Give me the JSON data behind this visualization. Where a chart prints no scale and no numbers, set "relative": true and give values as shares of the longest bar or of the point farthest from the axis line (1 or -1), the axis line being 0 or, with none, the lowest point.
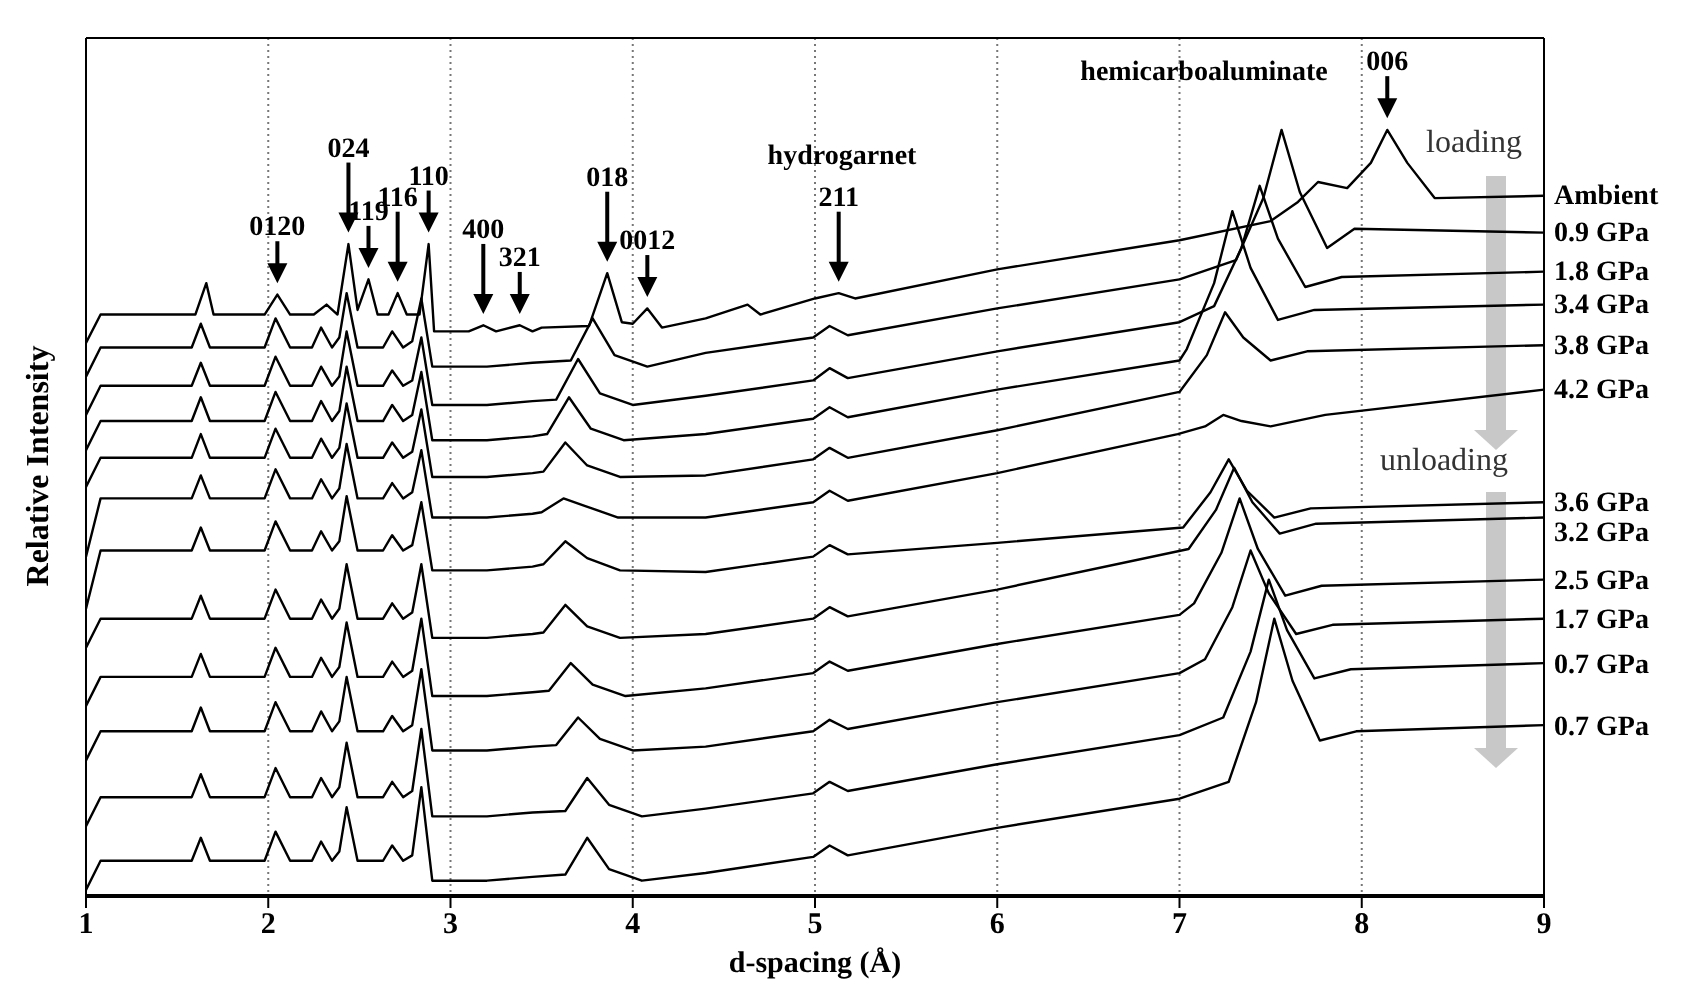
{
  "chart_data": {
    "type": "line",
    "relative": true,
    "xlabel": "d-spacing (Å)",
    "ylabel": "Relative Intensity",
    "xlim": [
      1,
      9
    ],
    "xticks": [
      1,
      2,
      3,
      4,
      5,
      6,
      7,
      8,
      9
    ],
    "grid": "x",
    "line_style": "solid",
    "annotations": [
      "hydrogarnet",
      "hemicarboaluminate",
      "loading",
      "unloading",
      {
        "text": "0120",
        "x": 2.05,
        "y": 0.785
      },
      {
        "text": "024",
        "x": 2.44,
        "y": 0.851
      },
      {
        "text": "119",
        "x": 2.55,
        "y": 0.805
      },
      {
        "text": "116",
        "x": 2.71,
        "y": 0.787
      },
      {
        "text": "110",
        "x": 2.88,
        "y": 0.851
      },
      {
        "text": "400",
        "x": 3.18,
        "y": 0.745
      },
      {
        "text": "321",
        "x": 3.38,
        "y": 0.745
      },
      {
        "text": "018",
        "x": 3.86,
        "y": 0.813
      },
      {
        "text": "0012",
        "x": 4.08,
        "y": 0.767
      },
      {
        "text": "211",
        "x": 5.13,
        "y": 0.787
      },
      {
        "text": "006",
        "x": 8.14,
        "y": 1
      }
    ],
    "series": [
      {
        "name": "Ambient",
        "color": "#000000",
        "x": [
          1,
          1.08,
          1.4,
          1.6,
          1.66,
          1.7,
          1.98,
          2.05,
          2.12,
          2.25,
          2.32,
          2.38,
          2.44,
          2.49,
          2.55,
          2.6,
          2.66,
          2.71,
          2.76,
          2.83,
          2.88,
          2.91,
          3.1,
          3.18,
          3.25,
          3.38,
          3.45,
          3.5,
          3.76,
          3.86,
          3.94,
          4,
          4.08,
          4.16,
          4.4,
          4.63,
          4.7,
          5,
          5.13,
          5.22,
          6,
          7,
          7.5,
          7.65,
          7.76,
          7.92,
          8.05,
          8.14,
          8.25,
          8.4,
          9
        ],
        "values": [
          0.722,
          0.759,
          0.759,
          0.759,
          0.8,
          0.759,
          0.759,
          0.785,
          0.759,
          0.759,
          0.772,
          0.759,
          0.851,
          0.765,
          0.805,
          0.759,
          0.759,
          0.787,
          0.759,
          0.759,
          0.851,
          0.737,
          0.737,
          0.745,
          0.737,
          0.745,
          0.737,
          0.742,
          0.744,
          0.813,
          0.749,
          0.747,
          0.767,
          0.742,
          0.754,
          0.772,
          0.759,
          0.78,
          0.787,
          0.78,
          0.818,
          0.856,
          0.881,
          0.906,
          0.932,
          0.924,
          0.957,
          1,
          0.957,
          0.911,
          0.914
        ]
      },
      {
        "name": "0.9 GPa",
        "color": "#000000",
        "x": [
          1,
          1.08,
          1.4,
          1.58,
          1.63,
          1.68,
          1.98,
          2.04,
          2.12,
          2.24,
          2.29,
          2.35,
          2.39,
          2.43,
          2.49,
          2.63,
          2.68,
          2.74,
          2.79,
          2.84,
          2.9,
          3.2,
          3.45,
          3.66,
          3.78,
          3.9,
          4.08,
          4.4,
          4.99,
          5.08,
          5.18,
          6,
          7,
          7.31,
          7.46,
          7.56,
          7.66,
          7.81,
          7.96,
          9
        ],
        "values": [
          0.678,
          0.716,
          0.716,
          0.716,
          0.747,
          0.716,
          0.716,
          0.754,
          0.716,
          0.716,
          0.742,
          0.716,
          0.729,
          0.787,
          0.716,
          0.716,
          0.737,
          0.716,
          0.724,
          0.78,
          0.691,
          0.691,
          0.696,
          0.699,
          0.754,
          0.706,
          0.691,
          0.709,
          0.729,
          0.744,
          0.732,
          0.767,
          0.805,
          0.83,
          0.911,
          1,
          0.919,
          0.846,
          0.871,
          0.866
        ]
      },
      {
        "name": "1.8 GPa",
        "color": "#000000",
        "x": [
          1,
          1.08,
          1.4,
          1.58,
          1.63,
          1.68,
          1.98,
          2.04,
          2.12,
          2.24,
          2.29,
          2.35,
          2.39,
          2.43,
          2.49,
          2.63,
          2.68,
          2.74,
          2.79,
          2.84,
          2.9,
          3.2,
          3.45,
          3.58,
          3.7,
          3.82,
          4,
          4.4,
          4.99,
          5.08,
          5.18,
          6,
          7,
          7.19,
          7.34,
          7.44,
          7.54,
          7.69,
          7.89,
          9
        ],
        "values": [
          0.628,
          0.666,
          0.666,
          0.666,
          0.696,
          0.666,
          0.666,
          0.704,
          0.666,
          0.666,
          0.691,
          0.666,
          0.678,
          0.737,
          0.666,
          0.666,
          0.686,
          0.666,
          0.673,
          0.729,
          0.641,
          0.641,
          0.646,
          0.648,
          0.701,
          0.656,
          0.641,
          0.653,
          0.673,
          0.689,
          0.676,
          0.711,
          0.749,
          0.77,
          0.846,
          0.927,
          0.858,
          0.795,
          0.808,
          0.815
        ]
      },
      {
        "name": "3.4 GPa",
        "color": "#000000",
        "x": [
          1,
          1.08,
          1.4,
          1.58,
          1.63,
          1.68,
          1.98,
          2.04,
          2.12,
          2.24,
          2.29,
          2.35,
          2.39,
          2.43,
          2.49,
          2.63,
          2.68,
          2.74,
          2.79,
          2.84,
          2.9,
          3.2,
          3.45,
          3.53,
          3.65,
          3.77,
          3.95,
          4.4,
          4.99,
          5.08,
          5.18,
          6,
          7,
          7.04,
          7.19,
          7.29,
          7.39,
          7.54,
          7.74,
          9
        ],
        "values": [
          0.582,
          0.62,
          0.62,
          0.62,
          0.651,
          0.62,
          0.62,
          0.658,
          0.62,
          0.62,
          0.646,
          0.62,
          0.633,
          0.691,
          0.62,
          0.62,
          0.641,
          0.62,
          0.628,
          0.684,
          0.595,
          0.595,
          0.6,
          0.603,
          0.651,
          0.61,
          0.595,
          0.603,
          0.623,
          0.638,
          0.625,
          0.661,
          0.699,
          0.714,
          0.8,
          0.894,
          0.82,
          0.752,
          0.765,
          0.772
        ]
      },
      {
        "name": "3.8 GPa",
        "color": "#000000",
        "x": [
          1,
          1.08,
          1.4,
          1.58,
          1.63,
          1.68,
          1.98,
          2.04,
          2.12,
          2.24,
          2.29,
          2.35,
          2.39,
          2.43,
          2.49,
          2.63,
          2.68,
          2.74,
          2.79,
          2.84,
          2.9,
          3.2,
          3.45,
          3.51,
          3.63,
          3.75,
          3.93,
          4.4,
          4.99,
          5.08,
          5.18,
          6,
          7,
          7.15,
          7.25,
          7.35,
          7.5,
          7.7,
          9
        ],
        "values": [
          0.534,
          0.572,
          0.572,
          0.572,
          0.603,
          0.572,
          0.572,
          0.61,
          0.572,
          0.572,
          0.597,
          0.572,
          0.585,
          0.643,
          0.572,
          0.572,
          0.592,
          0.572,
          0.58,
          0.635,
          0.547,
          0.547,
          0.552,
          0.554,
          0.592,
          0.562,
          0.547,
          0.549,
          0.57,
          0.585,
          0.572,
          0.608,
          0.658,
          0.706,
          0.762,
          0.729,
          0.699,
          0.711,
          0.719
        ]
      },
      {
        "name": "4.2 GPa",
        "color": "#000000",
        "x": [
          1,
          1.08,
          1.4,
          1.58,
          1.63,
          1.68,
          1.98,
          2.04,
          2.12,
          2.24,
          2.29,
          2.35,
          2.39,
          2.43,
          2.49,
          2.63,
          2.68,
          2.74,
          2.79,
          2.84,
          2.9,
          3.2,
          3.45,
          3.5,
          3.62,
          3.74,
          3.92,
          4.4,
          4.99,
          5.08,
          5.18,
          6,
          6.99,
          7.14,
          7.24,
          7.34,
          7.5,
          7.8,
          9
        ],
        "values": [
          0.443,
          0.519,
          0.519,
          0.519,
          0.549,
          0.519,
          0.519,
          0.557,
          0.519,
          0.519,
          0.544,
          0.519,
          0.532,
          0.59,
          0.519,
          0.519,
          0.539,
          0.519,
          0.527,
          0.582,
          0.494,
          0.494,
          0.499,
          0.501,
          0.519,
          0.509,
          0.494,
          0.494,
          0.514,
          0.529,
          0.516,
          0.552,
          0.603,
          0.613,
          0.628,
          0.62,
          0.613,
          0.628,
          0.661
        ]
      },
      {
        "name": "3.6 GPa",
        "color": "#000000",
        "x": [
          1,
          1.08,
          1.4,
          1.58,
          1.63,
          1.68,
          1.98,
          2.04,
          2.12,
          2.24,
          2.29,
          2.35,
          2.39,
          2.43,
          2.49,
          2.63,
          2.68,
          2.74,
          2.79,
          2.84,
          2.9,
          3.2,
          3.45,
          3.51,
          3.63,
          3.75,
          3.93,
          4.4,
          4.99,
          5.08,
          5.18,
          6,
          7.02,
          7.17,
          7.27,
          7.37,
          7.52,
          7.72,
          9
        ],
        "values": [
          0.375,
          0.451,
          0.451,
          0.451,
          0.481,
          0.451,
          0.451,
          0.489,
          0.451,
          0.451,
          0.476,
          0.451,
          0.463,
          0.522,
          0.451,
          0.451,
          0.471,
          0.451,
          0.458,
          0.514,
          0.425,
          0.425,
          0.43,
          0.433,
          0.463,
          0.441,
          0.425,
          0.423,
          0.443,
          0.458,
          0.446,
          0.461,
          0.481,
          0.527,
          0.57,
          0.529,
          0.494,
          0.506,
          0.514
        ]
      },
      {
        "name": "3.2 GPa",
        "color": "#000000",
        "x": [
          1,
          1.08,
          1.4,
          1.58,
          1.63,
          1.68,
          1.98,
          2.04,
          2.12,
          2.24,
          2.29,
          2.35,
          2.39,
          2.43,
          2.49,
          2.63,
          2.68,
          2.74,
          2.79,
          2.84,
          2.9,
          3.2,
          3.45,
          3.51,
          3.63,
          3.75,
          3.93,
          4.4,
          4.99,
          5.08,
          5.18,
          6,
          7.05,
          7.2,
          7.3,
          7.4,
          7.55,
          7.75,
          9
        ],
        "values": [
          0.324,
          0.362,
          0.362,
          0.362,
          0.392,
          0.362,
          0.362,
          0.4,
          0.362,
          0.362,
          0.387,
          0.362,
          0.375,
          0.433,
          0.362,
          0.362,
          0.382,
          0.362,
          0.37,
          0.433,
          0.337,
          0.337,
          0.342,
          0.344,
          0.38,
          0.352,
          0.337,
          0.342,
          0.362,
          0.377,
          0.365,
          0.4,
          0.453,
          0.504,
          0.559,
          0.514,
          0.473,
          0.486,
          0.494
        ]
      },
      {
        "name": "2.5 GPa",
        "color": "#000000",
        "x": [
          1,
          1.08,
          1.4,
          1.58,
          1.63,
          1.68,
          1.98,
          2.04,
          2.12,
          2.24,
          2.29,
          2.35,
          2.39,
          2.43,
          2.49,
          2.63,
          2.68,
          2.74,
          2.79,
          2.84,
          2.9,
          3.2,
          3.45,
          3.54,
          3.66,
          3.78,
          3.96,
          4.4,
          4.99,
          5.08,
          5.18,
          6,
          7,
          7.08,
          7.23,
          7.33,
          7.43,
          7.58,
          7.78,
          9
        ],
        "values": [
          0.248,
          0.286,
          0.286,
          0.286,
          0.316,
          0.286,
          0.286,
          0.324,
          0.286,
          0.286,
          0.311,
          0.286,
          0.299,
          0.357,
          0.286,
          0.286,
          0.306,
          0.286,
          0.294,
          0.362,
          0.261,
          0.261,
          0.266,
          0.268,
          0.304,
          0.276,
          0.261,
          0.271,
          0.291,
          0.306,
          0.294,
          0.329,
          0.367,
          0.382,
          0.448,
          0.519,
          0.453,
          0.392,
          0.405,
          0.413
        ]
      },
      {
        "name": "1.7 GPa",
        "color": "#000000",
        "x": [
          1,
          1.08,
          1.4,
          1.58,
          1.63,
          1.68,
          1.98,
          2.04,
          2.12,
          2.24,
          2.29,
          2.35,
          2.39,
          2.43,
          2.49,
          2.63,
          2.68,
          2.74,
          2.79,
          2.84,
          2.9,
          3.2,
          3.45,
          3.58,
          3.7,
          3.82,
          4,
          4.4,
          4.99,
          5.08,
          5.18,
          6,
          7,
          7.14,
          7.29,
          7.39,
          7.49,
          7.64,
          7.84,
          9
        ],
        "values": [
          0.177,
          0.215,
          0.215,
          0.215,
          0.246,
          0.215,
          0.215,
          0.253,
          0.215,
          0.215,
          0.241,
          0.215,
          0.228,
          0.286,
          0.215,
          0.215,
          0.235,
          0.215,
          0.223,
          0.296,
          0.19,
          0.19,
          0.195,
          0.197,
          0.233,
          0.205,
          0.19,
          0.195,
          0.215,
          0.23,
          0.218,
          0.253,
          0.291,
          0.309,
          0.377,
          0.451,
          0.395,
          0.342,
          0.354,
          0.362
        ]
      },
      {
        "name": "0.7 GPa",
        "color": "#000000",
        "x": [
          1,
          1.08,
          1.4,
          1.58,
          1.63,
          1.68,
          1.98,
          2.04,
          2.12,
          2.24,
          2.29,
          2.35,
          2.39,
          2.43,
          2.49,
          2.63,
          2.68,
          2.74,
          2.79,
          2.84,
          2.9,
          3.2,
          3.45,
          3.63,
          3.75,
          3.87,
          4.05,
          4.4,
          4.99,
          5.08,
          5.18,
          6,
          7,
          7.24,
          7.39,
          7.49,
          7.59,
          7.74,
          7.94,
          9
        ],
        "values": [
          0.091,
          0.129,
          0.129,
          0.129,
          0.159,
          0.129,
          0.129,
          0.167,
          0.129,
          0.129,
          0.154,
          0.129,
          0.142,
          0.2,
          0.129,
          0.129,
          0.149,
          0.129,
          0.137,
          0.218,
          0.104,
          0.104,
          0.109,
          0.111,
          0.154,
          0.119,
          0.104,
          0.114,
          0.134,
          0.149,
          0.137,
          0.172,
          0.21,
          0.233,
          0.319,
          0.413,
          0.347,
          0.284,
          0.296,
          0.304
        ]
      },
      {
        "name": "0.7 GPa",
        "color": "#000000",
        "x": [
          1,
          1.08,
          1.4,
          1.58,
          1.63,
          1.68,
          1.98,
          2.04,
          2.12,
          2.24,
          2.29,
          2.35,
          2.39,
          2.43,
          2.49,
          2.63,
          2.68,
          2.74,
          2.79,
          2.84,
          2.9,
          3.2,
          3.45,
          3.63,
          3.75,
          3.87,
          4.05,
          4.4,
          4.99,
          5.08,
          5.18,
          6,
          7,
          7.27,
          7.42,
          7.52,
          7.62,
          7.77,
          7.97,
          9
        ],
        "values": [
          0.008,
          0.046,
          0.046,
          0.046,
          0.076,
          0.046,
          0.046,
          0.084,
          0.046,
          0.046,
          0.071,
          0.046,
          0.058,
          0.116,
          0.046,
          0.046,
          0.066,
          0.046,
          0.053,
          0.142,
          0.02,
          0.02,
          0.025,
          0.028,
          0.076,
          0.035,
          0.02,
          0.03,
          0.051,
          0.066,
          0.053,
          0.089,
          0.127,
          0.149,
          0.253,
          0.362,
          0.281,
          0.203,
          0.215,
          0.223
        ]
      }
    ]
  }
}
